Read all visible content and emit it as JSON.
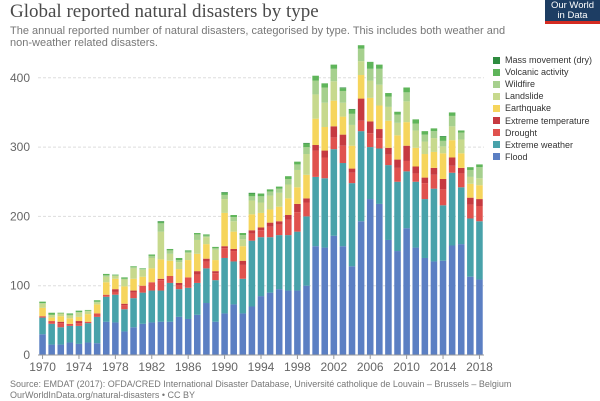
{
  "header": {
    "title": "Global reported natural disasters by type",
    "subtitle": "The annual reported number of natural disasters, categorised by type. This includes both weather and non-weather related disasters.",
    "logo_line1": "Our World",
    "logo_line2": "in Data"
  },
  "footer": {
    "source": "Source: EMDAT (2017): OFDA/CRED International Disaster Database, Université catholique de Louvain – Brussels – Belgium",
    "url": "OurWorldInData.org/natural-disasters • CC BY"
  },
  "chart_data": {
    "type": "bar",
    "stacked": true,
    "x": [
      1970,
      1971,
      1972,
      1973,
      1974,
      1975,
      1976,
      1977,
      1978,
      1979,
      1980,
      1981,
      1982,
      1983,
      1984,
      1985,
      1986,
      1987,
      1988,
      1989,
      1990,
      1991,
      1992,
      1993,
      1994,
      1995,
      1996,
      1997,
      1998,
      1999,
      2000,
      2001,
      2002,
      2003,
      2004,
      2005,
      2006,
      2007,
      2008,
      2009,
      2010,
      2011,
      2012,
      2013,
      2014,
      2015,
      2016,
      2017,
      2018
    ],
    "x_ticks": [
      "1970",
      "1974",
      "1978",
      "1982",
      "1986",
      "1990",
      "1994",
      "1998",
      "2002",
      "2006",
      "2010",
      "2014",
      "2018"
    ],
    "y_ticks": [
      "0",
      "100",
      "200",
      "300",
      "400"
    ],
    "ylim": [
      0,
      430
    ],
    "grid": "horizontal dashed",
    "legend_position": "right",
    "series": [
      {
        "name": "Flood",
        "color": "#5b7fc3",
        "values": [
          30,
          15,
          15,
          18,
          16,
          18,
          17,
          48,
          47,
          34,
          40,
          45,
          47,
          48,
          48,
          55,
          52,
          58,
          75,
          48,
          60,
          73,
          60,
          70,
          85,
          90,
          95,
          93,
          93,
          100,
          157,
          155,
          172,
          157,
          128,
          193,
          225,
          218,
          166,
          150,
          183,
          155,
          140,
          135,
          136,
          158,
          160,
          113,
          109
        ]
      },
      {
        "name": "Extreme weather",
        "color": "#48a2aa",
        "values": [
          24,
          30,
          25,
          24,
          26,
          28,
          38,
          36,
          40,
          32,
          42,
          45,
          46,
          45,
          56,
          40,
          45,
          46,
          50,
          60,
          80,
          62,
          50,
          95,
          85,
          80,
          78,
          80,
          85,
          100,
          100,
          100,
          125,
          120,
          120,
          130,
          75,
          80,
          108,
          100,
          82,
          95,
          85,
          105,
          80,
          105,
          82,
          84,
          84
        ]
      },
      {
        "name": "Drought",
        "color": "#e0524e",
        "values": [
          2,
          4,
          6,
          3,
          4,
          2,
          5,
          3,
          4,
          6,
          8,
          10,
          12,
          15,
          10,
          6,
          15,
          12,
          10,
          10,
          14,
          15,
          20,
          10,
          10,
          15,
          15,
          22,
          28,
          20,
          38,
          30,
          17,
          25,
          15,
          15,
          20,
          15,
          15,
          20,
          15,
          12,
          23,
          20,
          23,
          10,
          20,
          20,
          22
        ]
      },
      {
        "name": "Extreme temperature",
        "color": "#c63a40",
        "values": [
          0,
          0,
          2,
          0,
          3,
          0,
          0,
          0,
          4,
          2,
          3,
          0,
          0,
          2,
          0,
          3,
          0,
          5,
          4,
          3,
          3,
          3,
          6,
          5,
          4,
          6,
          5,
          7,
          12,
          6,
          8,
          10,
          16,
          16,
          6,
          32,
          17,
          13,
          10,
          12,
          22,
          10,
          8,
          10,
          15,
          12,
          8,
          10,
          10
        ]
      },
      {
        "name": "Earthquake",
        "color": "#f6d55c",
        "values": [
          12,
          5,
          8,
          8,
          6,
          11,
          13,
          18,
          15,
          25,
          17,
          13,
          20,
          28,
          22,
          20,
          25,
          25,
          21,
          16,
          48,
          25,
          21,
          23,
          21,
          19,
          21,
          24,
          24,
          34,
          38,
          34,
          37,
          26,
          33,
          34,
          34,
          34,
          39,
          35,
          34,
          27,
          34,
          23,
          37,
          25,
          21,
          20,
          20
        ]
      },
      {
        "name": "Landslide",
        "color": "#c7d98d",
        "values": [
          6,
          4,
          4,
          4,
          6,
          4,
          3,
          8,
          4,
          10,
          15,
          10,
          15,
          40,
          10,
          10,
          10,
          20,
          10,
          15,
          20,
          15,
          10,
          20,
          15,
          20,
          20,
          20,
          25,
          30,
          35,
          35,
          28,
          20,
          30,
          20,
          25,
          30,
          20,
          18,
          30,
          25,
          18,
          20,
          10,
          20,
          20,
          10,
          10
        ]
      },
      {
        "name": "Wildfire",
        "color": "#a6d08e",
        "values": [
          1,
          0,
          0,
          1,
          1,
          1,
          1,
          2,
          1,
          1,
          2,
          1,
          3,
          12,
          5,
          3,
          2,
          8,
          2,
          2,
          6,
          6,
          6,
          6,
          9,
          6,
          6,
          8,
          8,
          10,
          20,
          22,
          18,
          17,
          16,
          18,
          17,
          23,
          15,
          12,
          13,
          10,
          10,
          10,
          8,
          15,
          10,
          10,
          16
        ]
      },
      {
        "name": "Volcanic activity",
        "color": "#5fb55a",
        "values": [
          2,
          3,
          1,
          2,
          2,
          1,
          2,
          2,
          1,
          2,
          1,
          1,
          2,
          2,
          2,
          3,
          2,
          2,
          2,
          2,
          3,
          3,
          3,
          4,
          4,
          3,
          3,
          4,
          4,
          5,
          7,
          6,
          6,
          4,
          6,
          5,
          10,
          6,
          5,
          4,
          7,
          6,
          5,
          4,
          6,
          5,
          3,
          4,
          4
        ]
      },
      {
        "name": "Mass movement (dry)",
        "color": "#2e8b3f",
        "values": [
          0,
          0,
          0,
          0,
          0,
          0,
          0,
          0,
          0,
          0,
          0,
          0,
          0,
          1,
          0,
          0,
          0,
          0,
          0,
          0,
          1,
          0,
          0,
          1,
          0,
          0,
          0,
          0,
          0,
          1,
          0,
          0,
          0,
          1,
          1,
          0,
          0,
          0,
          0,
          0,
          0,
          0,
          0,
          0,
          1,
          0,
          0,
          0,
          0
        ]
      }
    ]
  }
}
